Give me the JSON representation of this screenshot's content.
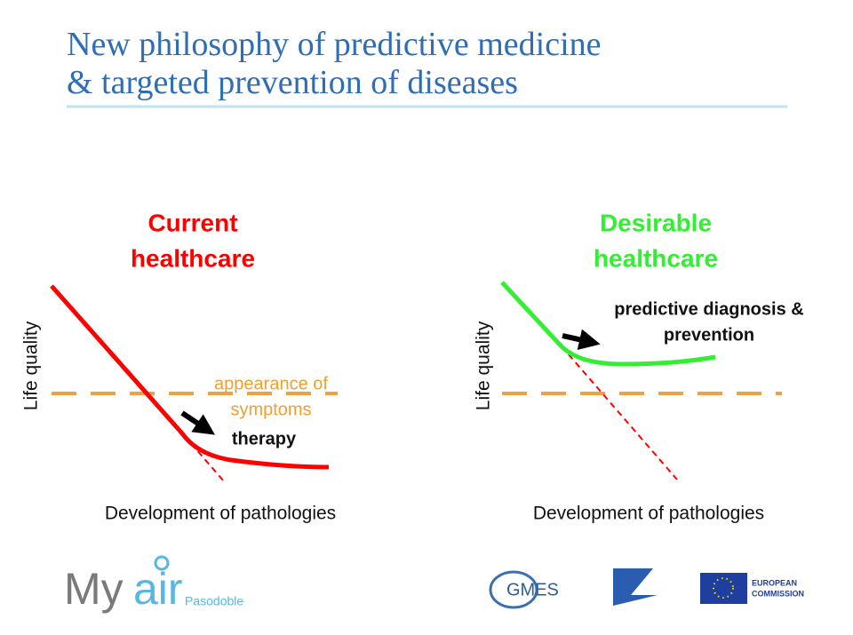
{
  "header": {
    "title_lines": [
      "New philosophy of predictive medicine",
      "& targeted prevention of diseases"
    ]
  },
  "panels": [
    {
      "title_lines": [
        "Current",
        "healthcare"
      ],
      "y_axis_label": "Life quality",
      "x_axis_label": "Development of pathologies",
      "threshold_label_lines": [
        "appearance of",
        "symptoms"
      ],
      "arrow_label_lines": [
        "therapy"
      ]
    },
    {
      "title_lines": [
        "Desirable",
        "healthcare"
      ],
      "y_axis_label": "Life quality",
      "x_axis_label": "Development of pathologies",
      "arrow_label_lines": [
        "predictive diagnosis &",
        "prevention"
      ]
    }
  ],
  "footer": {
    "logo_main": "My",
    "logo_accent": "air",
    "logo_sub": "Pasodoble",
    "gmes": "GMES",
    "eu_lines": [
      "EUROPEAN",
      "COMMISSION"
    ]
  }
}
